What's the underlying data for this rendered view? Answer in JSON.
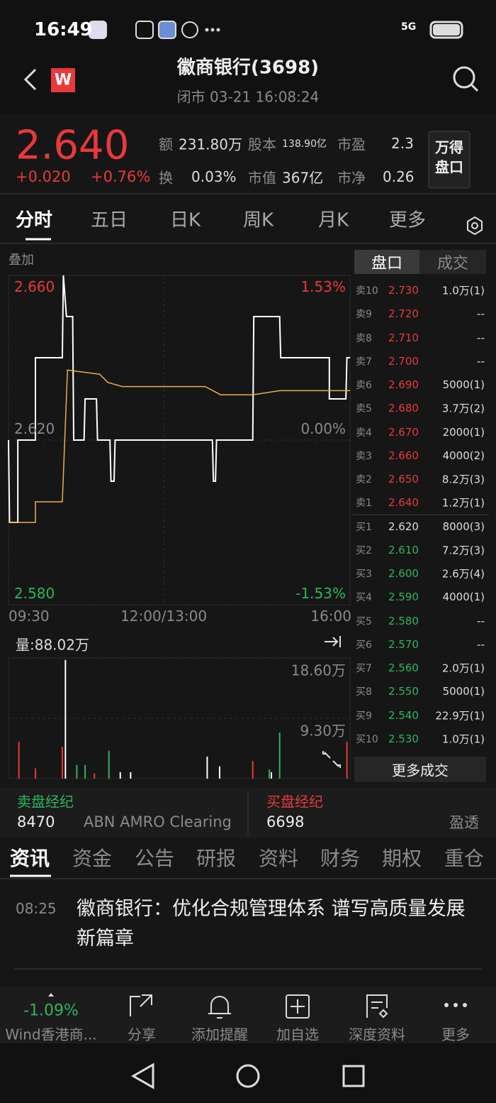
{
  "status_bar": {
    "time": "16:49",
    "network": "5G"
  },
  "header": {
    "logo": "W",
    "title": "徽商银行(3698)",
    "subtitle": "闭市 03-21 16:08:24"
  },
  "quote": {
    "price": "2.640",
    "change": "+0.020",
    "change_pct": "+0.76%",
    "stats": [
      [
        {
          "label": "额",
          "value": "231.80万"
        },
        {
          "label": "股本",
          "value": "138.90亿"
        },
        {
          "label": "市盈",
          "value": "2.3"
        }
      ],
      [
        {
          "label": "换",
          "value": "0.03%"
        },
        {
          "label": "市值",
          "value": "367亿"
        },
        {
          "label": "市净",
          "value": "0.26"
        }
      ]
    ],
    "button": [
      "万得",
      "盘口"
    ]
  },
  "tabs": [
    "分时",
    "五日",
    "日K",
    "周K",
    "月K",
    "更多"
  ],
  "chart": {
    "type": "line",
    "overlay": "叠加",
    "xlim": [
      0,
      330
    ],
    "xticks": [
      {
        "value": 0,
        "label": "09:30"
      },
      {
        "value": 150,
        "label": "12:00/13:00"
      },
      {
        "value": 330,
        "label": "16:00"
      }
    ],
    "ylim": [
      2.58,
      2.66
    ],
    "yticks": [
      {
        "value": 2.66,
        "label": "2.660"
      },
      {
        "value": 2.62,
        "label": "2.620"
      },
      {
        "value": 2.58,
        "label": "2.580"
      }
    ],
    "y2lim": [
      -1.53,
      1.53
    ],
    "y2ticks": [
      {
        "value": 1.53,
        "label": "1.53%"
      },
      {
        "value": 0,
        "label": "0.00%"
      },
      {
        "value": -1.53,
        "label": "-1.53%"
      }
    ],
    "series": [
      {
        "color": "#ffffff",
        "x": [
          0,
          1,
          9,
          9,
          26,
          26,
          52,
          53,
          56,
          62,
          63,
          73,
          74,
          85,
          86,
          98,
          99,
          102,
          103,
          197,
          198,
          200,
          201,
          236,
          237,
          262,
          263,
          310,
          310,
          326,
          327,
          330
        ],
        "values": [
          2.62,
          2.6,
          2.6,
          2.62,
          2.62,
          2.64,
          2.64,
          2.66,
          2.65,
          2.65,
          2.62,
          2.62,
          2.63,
          2.63,
          2.62,
          2.62,
          2.61,
          2.61,
          2.62,
          2.62,
          2.61,
          2.61,
          2.62,
          2.62,
          2.65,
          2.65,
          2.64,
          2.64,
          2.63,
          2.63,
          2.64,
          2.64
        ]
      },
      {
        "color": "#e8b04a",
        "x": [
          0,
          26,
          26,
          52,
          57,
          88,
          96,
          110,
          190,
          205,
          236,
          262,
          330
        ],
        "values": [
          2.6,
          2.6,
          2.605,
          2.605,
          2.637,
          2.636,
          2.634,
          2.633,
          2.633,
          2.631,
          2.631,
          2.632,
          2.632
        ]
      }
    ],
    "volume": {
      "label": "量:88.02万",
      "ylim": [
        0,
        18.6
      ],
      "yticks": [
        {
          "value": 18.6,
          "label": "18.60万"
        },
        {
          "value": 9.3,
          "label": "9.30万"
        }
      ],
      "x": [
        10,
        26,
        52,
        55,
        66,
        74,
        83,
        97,
        108,
        118,
        192,
        204,
        236,
        252,
        254,
        262,
        327
      ],
      "values": [
        5.7,
        1.6,
        4.9,
        18.3,
        2.1,
        2.1,
        0.8,
        4.3,
        1.0,
        1.0,
        3.4,
        1.9,
        2.7,
        1.4,
        1.0,
        7.1,
        5.7
      ],
      "colors": [
        "#e8393b",
        "#e8393b",
        "#e8393b",
        "#ffffff",
        "#2db55d",
        "#2db55d",
        "#e8393b",
        "#2db55d",
        "#ffffff",
        "#ffffff",
        "#ffffff",
        "#ffffff",
        "#e8393b",
        "#2db55d",
        "#ffffff",
        "#2db55d",
        "#e8393b"
      ]
    }
  },
  "order_book": {
    "tabs": [
      "盘口",
      "成交"
    ],
    "more": "更多成交",
    "rows": [
      {
        "label": "卖10",
        "price": "2.730",
        "volume": "1.0万(1)",
        "color": "#e8393b"
      },
      {
        "label": "卖9",
        "price": "2.720",
        "volume": "--",
        "color": "#e8393b"
      },
      {
        "label": "卖8",
        "price": "2.710",
        "volume": "--",
        "color": "#e8393b"
      },
      {
        "label": "卖7",
        "price": "2.700",
        "volume": "--",
        "color": "#e8393b"
      },
      {
        "label": "卖6",
        "price": "2.690",
        "volume": "5000(1)",
        "color": "#e8393b"
      },
      {
        "label": "卖5",
        "price": "2.680",
        "volume": "3.7万(2)",
        "color": "#e8393b"
      },
      {
        "label": "卖4",
        "price": "2.670",
        "volume": "2000(1)",
        "color": "#e8393b"
      },
      {
        "label": "卖3",
        "price": "2.660",
        "volume": "4000(2)",
        "color": "#e8393b"
      },
      {
        "label": "卖2",
        "price": "2.650",
        "volume": "8.2万(3)",
        "color": "#e8393b"
      },
      {
        "label": "卖1",
        "price": "2.640",
        "volume": "1.2万(1)",
        "color": "#e8393b"
      },
      {
        "label": "买1",
        "price": "2.620",
        "volume": "8000(3)",
        "color": "#dddddd"
      },
      {
        "label": "买2",
        "price": "2.610",
        "volume": "7.2万(3)",
        "color": "#2db55d"
      },
      {
        "label": "买3",
        "price": "2.600",
        "volume": "2.6万(4)",
        "color": "#2db55d"
      },
      {
        "label": "买4",
        "price": "2.590",
        "volume": "4000(1)",
        "color": "#2db55d"
      },
      {
        "label": "买5",
        "price": "2.580",
        "volume": "--",
        "color": "#2db55d"
      },
      {
        "label": "买6",
        "price": "2.570",
        "volume": "--",
        "color": "#2db55d"
      },
      {
        "label": "买7",
        "price": "2.560",
        "volume": "2.0万(1)",
        "color": "#2db55d"
      },
      {
        "label": "买8",
        "price": "2.550",
        "volume": "5000(1)",
        "color": "#2db55d"
      },
      {
        "label": "买9",
        "price": "2.540",
        "volume": "22.9万(1)",
        "color": "#2db55d"
      },
      {
        "label": "买10",
        "price": "2.530",
        "volume": "1.0万(1)",
        "color": "#2db55d"
      }
    ]
  },
  "brokers": {
    "sell": {
      "title": "卖盘经纪",
      "code": "8470",
      "name": "ABN AMRO Clearing"
    },
    "buy": {
      "title": "买盘经纪",
      "code": "6698",
      "name": "盈透"
    }
  },
  "news_tabs": [
    "资讯",
    "资金",
    "公告",
    "研报",
    "资料",
    "财务",
    "期权",
    "重仓"
  ],
  "news": [
    {
      "time": "08:25",
      "title": "徽商银行：优化合规管理体系 谱写高质量发展新篇章"
    }
  ],
  "bottom_bar": {
    "index_change": "-1.09%",
    "index_name": "Wind香港商...",
    "items": [
      "分享",
      "添加提醒",
      "加自选",
      "深度资料",
      "更多"
    ]
  }
}
